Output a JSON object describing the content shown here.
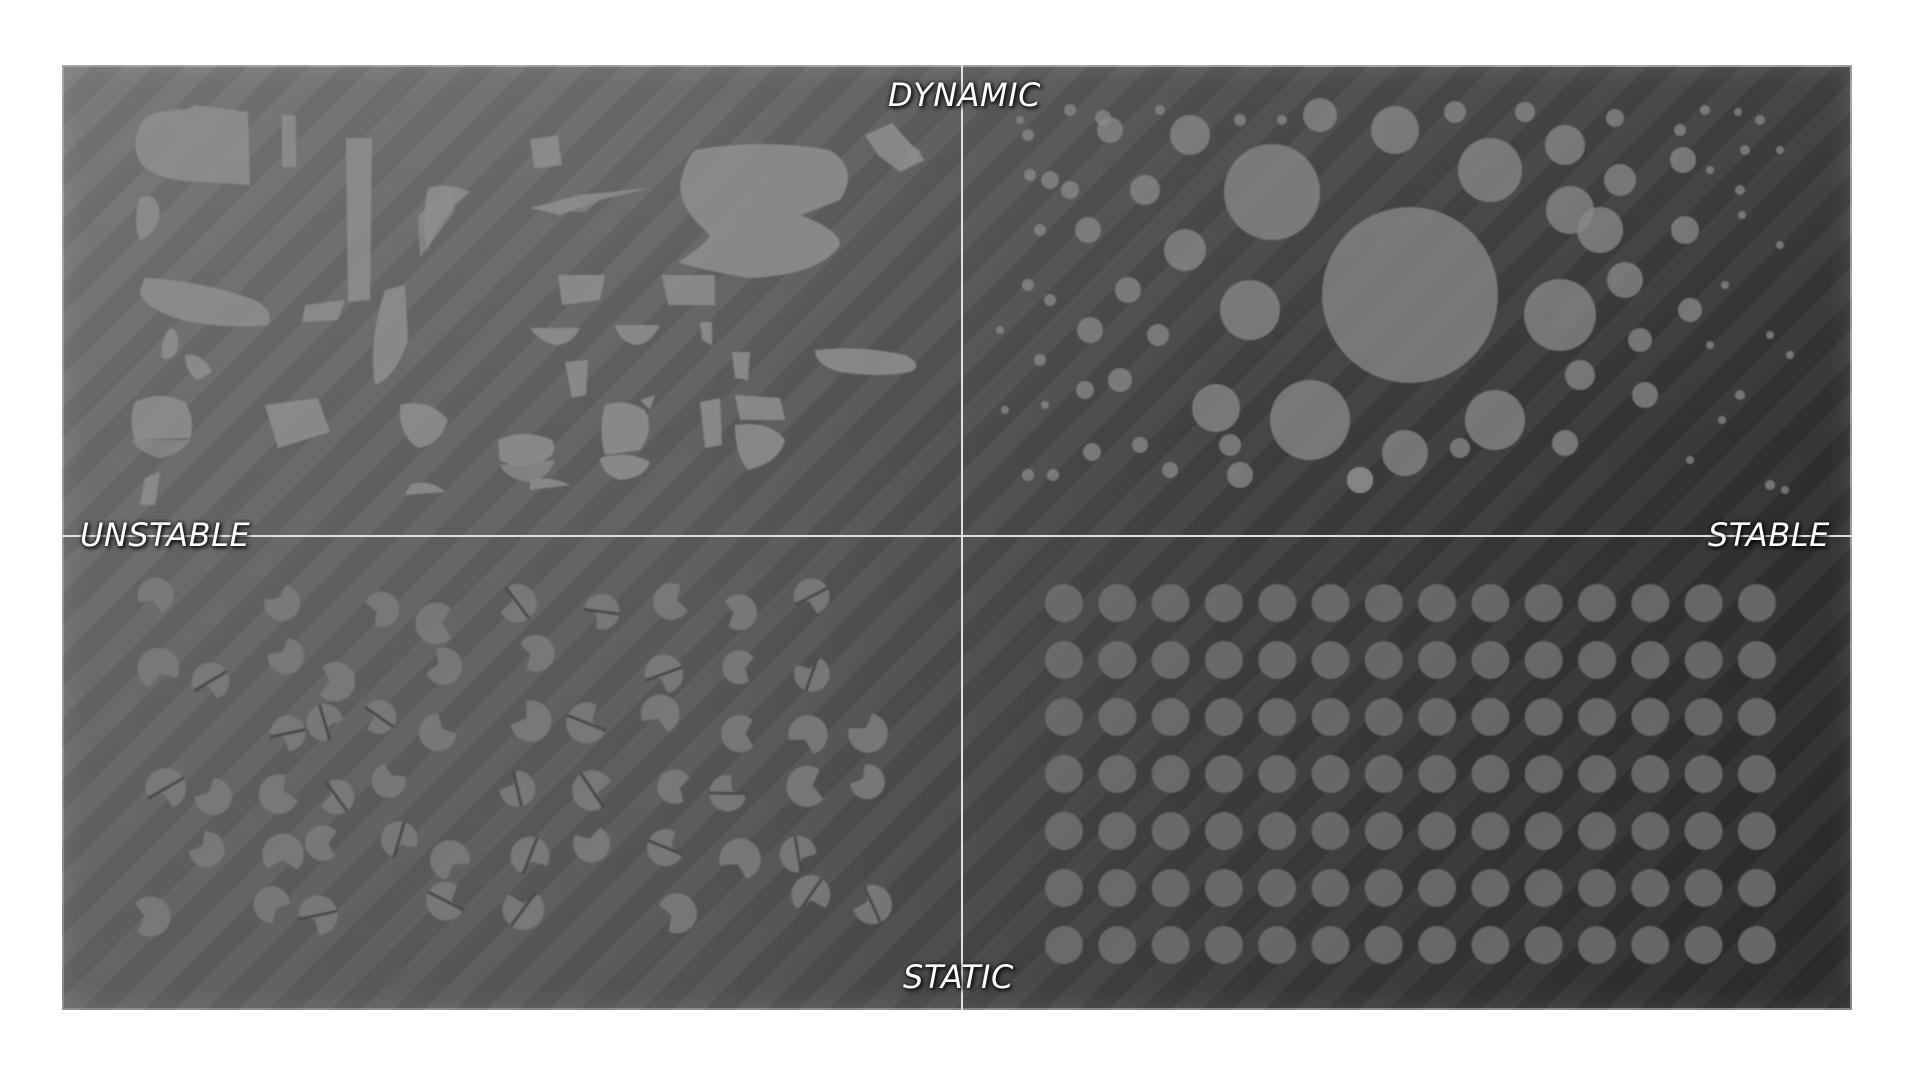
{
  "diagram": {
    "axis_labels": {
      "top": "DYNAMIC",
      "bottom": "STATIC",
      "left": "UNSTABLE",
      "right": "STABLE"
    },
    "quadrants": {
      "top_left": {
        "content": "broken-fragments-icon"
      },
      "top_right": {
        "content": "scattered-circles-icon"
      },
      "bottom_left": {
        "content": "broken-circles-grid-icon"
      },
      "bottom_right": {
        "content": "circle-grid-icon"
      }
    },
    "colors": {
      "panel_light": "#6b6b6b",
      "panel_dark": "#2f2f2f",
      "shape_fill": "#8a8a8a",
      "axis_line": "#d8d8d8",
      "label_text": "#ffffff"
    }
  }
}
